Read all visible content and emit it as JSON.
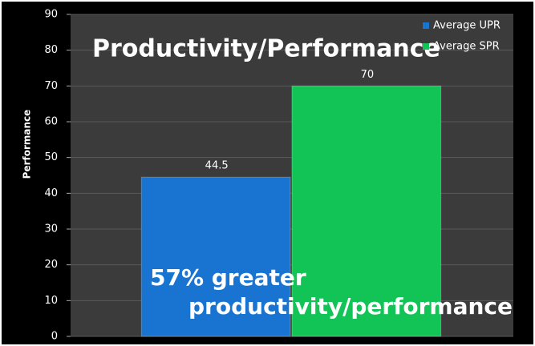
{
  "chart_data": {
    "type": "bar",
    "title": "Productivity/Performance",
    "ylabel": "Performance",
    "annotations": [
      "57% greater",
      "productivity/performance"
    ],
    "categories": [
      null
    ],
    "series": [
      {
        "name": "Average UPR",
        "color": "#1874d0",
        "values": [
          44.5
        ]
      },
      {
        "name": "Average SPR",
        "color": "#12c456",
        "values": [
          70
        ]
      }
    ],
    "ylim": [
      0,
      90
    ],
    "yticks": [
      0,
      10,
      20,
      30,
      40,
      50,
      60,
      70,
      80,
      90
    ],
    "grid": true,
    "legend": "top-right"
  }
}
